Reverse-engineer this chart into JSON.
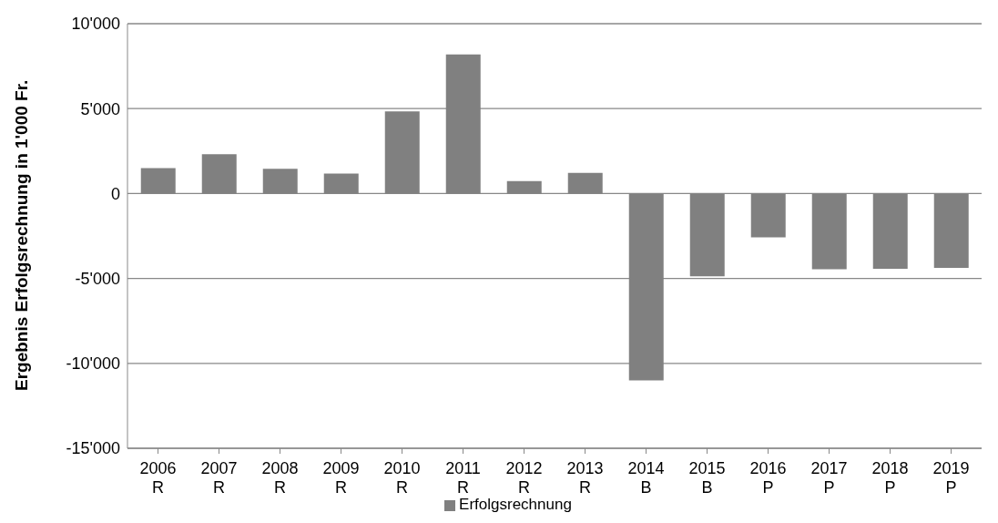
{
  "chart_data": {
    "type": "bar",
    "ylabel": "Ergebnis Erfolgsrechnung in 1'000 Fr.",
    "categories": [
      "2006\nR",
      "2007\nR",
      "2008\nR",
      "2009\nR",
      "2010\nR",
      "2011\nR",
      "2012\nR",
      "2013\nR",
      "2014\nB",
      "2015\nB",
      "2016\nP",
      "2017\nP",
      "2018\nP",
      "2019\nP"
    ],
    "series": [
      {
        "name": "Erfolgsrechnung",
        "color": "#808080",
        "values": [
          1500,
          2320,
          1460,
          1180,
          4840,
          8190,
          730,
          1220,
          -11000,
          -4880,
          -2580,
          -4460,
          -4430,
          -4380
        ]
      }
    ],
    "ylim": [
      -15000,
      10000
    ],
    "yticks": [
      {
        "value": -15000,
        "label": "-15'000"
      },
      {
        "value": -10000,
        "label": "-10'000"
      },
      {
        "value": -5000,
        "label": "-5'000"
      },
      0,
      {
        "value": 5000,
        "label": "5'000"
      },
      {
        "value": 10000,
        "label": "10'000"
      }
    ],
    "grid": "y",
    "legend": "bottom"
  }
}
